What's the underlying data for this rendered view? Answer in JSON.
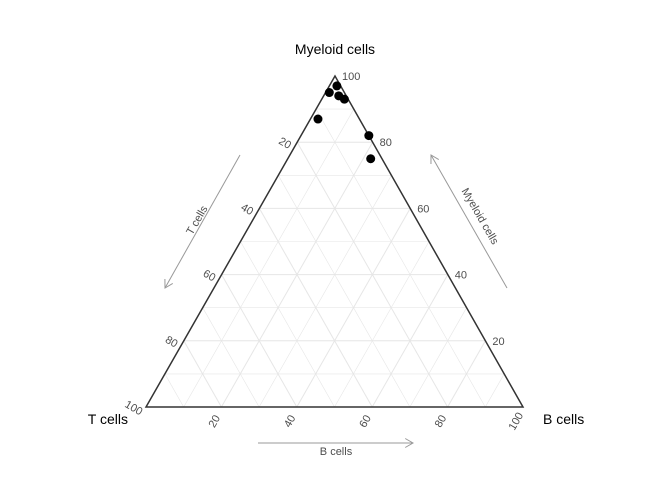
{
  "chart_data": {
    "type": "scatter",
    "subtype": "ternary",
    "title": "",
    "vertex_labels": {
      "top": "Myeloid cells",
      "left": "T cells",
      "right": "B cells"
    },
    "axis_arrow_labels": {
      "left": "T cells",
      "right": "Myeloid cells",
      "bottom": "B cells"
    },
    "ticks": [
      "20",
      "40",
      "60",
      "80",
      "100"
    ],
    "grid": true,
    "colors": {
      "points": "#000000",
      "grid": "#e6e6e6",
      "frame": "#333333",
      "arrow": "#999999"
    },
    "points": [
      {
        "t_cells": 1,
        "b_cells": 2,
        "myeloid_cells": 97
      },
      {
        "t_cells": 4,
        "b_cells": 1,
        "myeloid_cells": 95
      },
      {
        "t_cells": 2,
        "b_cells": 4,
        "myeloid_cells": 94
      },
      {
        "t_cells": 1,
        "b_cells": 6,
        "myeloid_cells": 93
      },
      {
        "t_cells": 11,
        "b_cells": 2,
        "myeloid_cells": 87
      },
      {
        "t_cells": 0,
        "b_cells": 18,
        "myeloid_cells": 82
      },
      {
        "t_cells": 3,
        "b_cells": 22,
        "myeloid_cells": 75
      }
    ]
  }
}
